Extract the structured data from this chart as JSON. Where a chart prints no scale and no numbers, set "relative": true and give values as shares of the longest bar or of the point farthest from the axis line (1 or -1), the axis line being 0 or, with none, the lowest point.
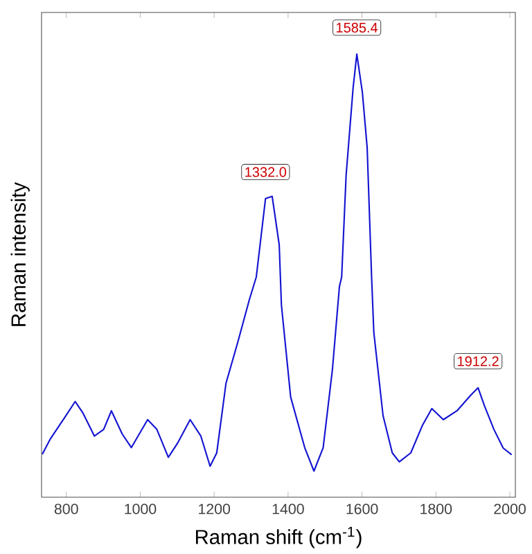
{
  "chart_data": {
    "type": "line",
    "relative": true,
    "xlabel": "Raman shift (cm$^{-1}$)",
    "ylabel": "Raman intensity",
    "xlim": [
      733,
      2015
    ],
    "xticks": [
      800,
      1000,
      1200,
      1400,
      1600,
      1800,
      2000
    ],
    "tick_labels": "x",
    "x": [
      735,
      757,
      795,
      824,
      845,
      876,
      901,
      922,
      951,
      976,
      1020,
      1045,
      1076,
      1101,
      1135,
      1164,
      1189,
      1207,
      1232,
      1264,
      1295,
      1314,
      1339,
      1357,
      1376,
      1382,
      1407,
      1445,
      1470,
      1495,
      1520,
      1539,
      1545,
      1557,
      1576,
      1586,
      1601,
      1614,
      1626,
      1632,
      1657,
      1682,
      1701,
      1732,
      1764,
      1789,
      1820,
      1857,
      1895,
      1914,
      1932,
      1957,
      1982,
      2005
    ],
    "series": [
      {
        "color": "#1414d2",
        "values": [
          0.097,
          0.132,
          0.179,
          0.216,
          0.19,
          0.138,
          0.153,
          0.195,
          0.143,
          0.112,
          0.175,
          0.153,
          0.09,
          0.122,
          0.175,
          0.138,
          0.07,
          0.1,
          0.257,
          0.35,
          0.445,
          0.497,
          0.674,
          0.679,
          0.57,
          0.434,
          0.226,
          0.112,
          0.059,
          0.112,
          0.288,
          0.476,
          0.497,
          0.726,
          0.924,
          1.0,
          0.914,
          0.789,
          0.497,
          0.372,
          0.184,
          0.1,
          0.08,
          0.1,
          0.163,
          0.2,
          0.175,
          0.195,
          0.231,
          0.247,
          0.205,
          0.153,
          0.111,
          0.096
        ]
      }
    ],
    "annotations": [
      {
        "text": "1332.0",
        "x": 1339,
        "y": 0.674
      },
      {
        "text": "1585.4",
        "x": 1586,
        "y": 1.0
      },
      {
        "text": "1912.2",
        "x": 1914,
        "y": 0.247
      }
    ]
  }
}
